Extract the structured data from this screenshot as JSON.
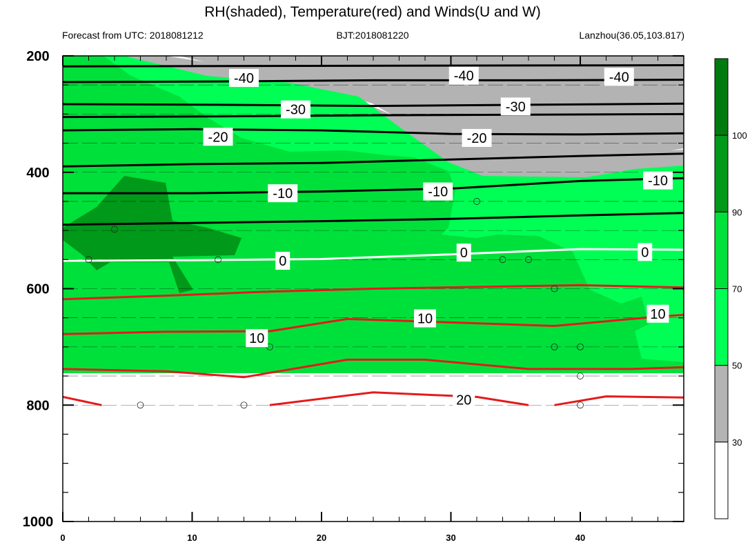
{
  "chart_data": {
    "type": "contour",
    "title": "RH(shaded), Temperature(red) and Winds(U and W)",
    "subtitle_left": "Forecast from UTC: 2018081212",
    "subtitle_center": "BJT:2018081220",
    "subtitle_right": "Lanzhou(36.05,103.817)",
    "x_ticks": [
      0,
      10,
      20,
      30,
      40
    ],
    "xlim": [
      0,
      48
    ],
    "y_ticks": [
      200,
      400,
      600,
      800,
      1000
    ],
    "ylim": [
      200,
      1000
    ],
    "y_inverted": true,
    "colorbar": {
      "levels": [
        30,
        50,
        70,
        90,
        100
      ],
      "colors": [
        "#ffffff",
        "#b3b3b3",
        "#00ff55",
        "#00e03a",
        "#009919",
        "#007a0f"
      ]
    },
    "temperature_contours": [
      {
        "label": "-40",
        "p": [
          [
            0,
            218
          ],
          [
            48,
            216
          ]
        ]
      },
      {
        "label": "-40",
        "p": [
          [
            0,
            245
          ],
          [
            12,
            244
          ],
          [
            24,
            242
          ],
          [
            36,
            242
          ],
          [
            48,
            241
          ]
        ]
      },
      {
        "label": "-30",
        "p": [
          [
            0,
            283
          ],
          [
            12,
            284
          ],
          [
            24,
            286
          ],
          [
            36,
            284
          ],
          [
            48,
            282
          ]
        ]
      },
      {
        "label": "-30",
        "p": [
          [
            0,
            305
          ],
          [
            12,
            304
          ],
          [
            24,
            302
          ],
          [
            36,
            301
          ],
          [
            48,
            300
          ]
        ]
      },
      {
        "label": "-20",
        "p": [
          [
            0,
            328
          ],
          [
            10,
            326
          ],
          [
            20,
            328
          ],
          [
            30,
            334
          ],
          [
            40,
            335
          ],
          [
            48,
            333
          ]
        ]
      },
      {
        "label": "-20",
        "p": [
          [
            0,
            390
          ],
          [
            10,
            386
          ],
          [
            20,
            384
          ],
          [
            30,
            378
          ],
          [
            40,
            372
          ],
          [
            48,
            368
          ]
        ]
      },
      {
        "label": "-10",
        "p": [
          [
            0,
            436
          ],
          [
            10,
            436
          ],
          [
            20,
            433
          ],
          [
            30,
            428
          ],
          [
            40,
            415
          ],
          [
            48,
            410
          ]
        ]
      },
      {
        "label": "-10",
        "p": [
          [
            0,
            490
          ],
          [
            10,
            487
          ],
          [
            20,
            484
          ],
          [
            30,
            480
          ],
          [
            40,
            474
          ],
          [
            48,
            470
          ]
        ]
      },
      {
        "label": "0",
        "p": [
          [
            0,
            552
          ],
          [
            10,
            551
          ],
          [
            20,
            549
          ],
          [
            30,
            541
          ],
          [
            40,
            532
          ],
          [
            48,
            533
          ]
        ]
      },
      {
        "label": "10",
        "p": [
          [
            0,
            618
          ],
          [
            8,
            612
          ],
          [
            16,
            605
          ],
          [
            24,
            600
          ],
          [
            32,
            597
          ],
          [
            40,
            594
          ],
          [
            48,
            598
          ]
        ]
      },
      {
        "label": "10",
        "p": [
          [
            0,
            678
          ],
          [
            8,
            674
          ],
          [
            16,
            673
          ],
          [
            22,
            652
          ],
          [
            30,
            658
          ],
          [
            38,
            664
          ],
          [
            46,
            648
          ],
          [
            48,
            645
          ]
        ]
      },
      {
        "label": "20",
        "p": [
          [
            0,
            738
          ],
          [
            8,
            742
          ],
          [
            14,
            752
          ],
          [
            22,
            722
          ],
          [
            28,
            722
          ],
          [
            36,
            738
          ],
          [
            44,
            738
          ],
          [
            48,
            735
          ]
        ]
      },
      {
        "label": "20",
        "p": [
          [
            16,
            800
          ],
          [
            24,
            778
          ],
          [
            32,
            786
          ],
          [
            36,
            800
          ]
        ]
      },
      {
        "label": "20",
        "p": [
          [
            0,
            786
          ],
          [
            3,
            800
          ]
        ]
      },
      {
        "label": "20",
        "p": [
          [
            38,
            800
          ],
          [
            42,
            785
          ],
          [
            48,
            787
          ]
        ]
      }
    ],
    "contour_labels": [
      {
        "text": "-40",
        "x": 14,
        "y": 238
      },
      {
        "text": "-40",
        "x": 31,
        "y": 234
      },
      {
        "text": "-40",
        "x": 43,
        "y": 236
      },
      {
        "text": "-30",
        "x": 18,
        "y": 292
      },
      {
        "text": "-30",
        "x": 35,
        "y": 287
      },
      {
        "text": "-20",
        "x": 12,
        "y": 339
      },
      {
        "text": "-20",
        "x": 32,
        "y": 341
      },
      {
        "text": "-10",
        "x": 17,
        "y": 436
      },
      {
        "text": "-10",
        "x": 29,
        "y": 433
      },
      {
        "text": "-10",
        "x": 46,
        "y": 414
      },
      {
        "text": "0",
        "x": 17,
        "y": 552
      },
      {
        "text": "0",
        "x": 31,
        "y": 538
      },
      {
        "text": "0",
        "x": 45,
        "y": 537
      },
      {
        "text": "10",
        "x": 15,
        "y": 685
      },
      {
        "text": "10",
        "x": 28,
        "y": 651
      },
      {
        "text": "10",
        "x": 46,
        "y": 643
      },
      {
        "text": "20",
        "x": 31,
        "y": 791
      }
    ],
    "calm_circles": [
      [
        4,
        498
      ],
      [
        2,
        550
      ],
      [
        12,
        550
      ],
      [
        16,
        700
      ],
      [
        6,
        800
      ],
      [
        14,
        800
      ],
      [
        32,
        450
      ],
      [
        34,
        550
      ],
      [
        36,
        550
      ],
      [
        38,
        600
      ],
      [
        38,
        700
      ],
      [
        40,
        700
      ],
      [
        40,
        750
      ],
      [
        40,
        800
      ]
    ]
  }
}
